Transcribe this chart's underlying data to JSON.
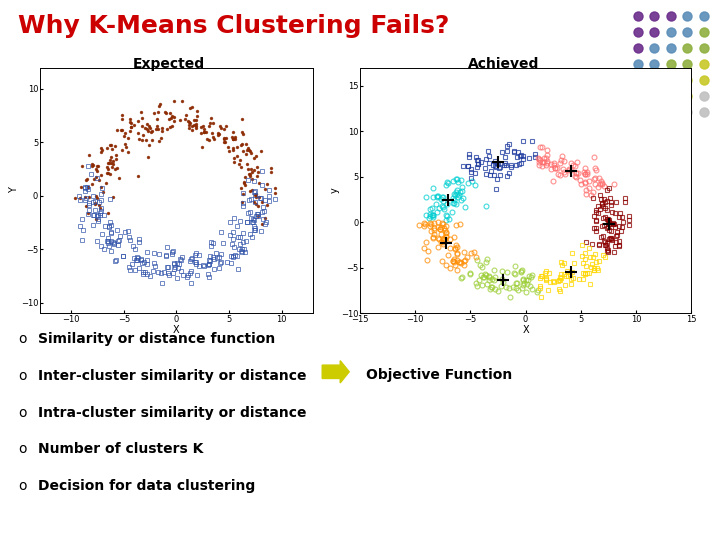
{
  "title": "Why K-Means Clustering Fails?",
  "title_color": "#CC0000",
  "title_fontsize": 18,
  "label_expected": "Expected",
  "label_achieved": "Achieved",
  "bg_color": "#FFFFFF",
  "sidebar_color": "#8B1010",
  "bullet_items": [
    "Similarity or distance function",
    "Inter-cluster similarity or distance",
    "Intra-cluster similarity or distance",
    "Number of clusters K",
    "Decision for data clustering"
  ],
  "objective_label": "Objective Function",
  "arrow_color": "#CCCC00",
  "bullet_fontsize": 10,
  "objective_fontsize": 10,
  "dot_grid": [
    [
      "#6B2D8B",
      "#6B2D8B",
      "#6B2D8B",
      "#5B8DB8",
      "#5B8DB8"
    ],
    [
      "#6B2D8B",
      "#6B2D8B",
      "#5B8DB8",
      "#5B8DB8",
      "#8FB040"
    ],
    [
      "#6B2D8B",
      "#5B8DB8",
      "#5B8DB8",
      "#8FB040",
      "#8FB040"
    ],
    [
      "#5B8DB8",
      "#5B8DB8",
      "#8FB040",
      "#8FB040",
      "#C8C828"
    ],
    [
      "#5B8DB8",
      "#8FB040",
      "#8FB040",
      "#C8C828",
      "#C8C828"
    ],
    [
      "#8FB040",
      "#8FB040",
      "#C8C828",
      "#C8C828",
      "#C0C0C0"
    ],
    [
      "#8FB040",
      "#C8C828",
      "#C8C828",
      "#C0C0C0",
      "#C0C0C0"
    ]
  ],
  "moon_color1": "#8B2800",
  "moon_color2": "#3355AA",
  "cluster_colors": [
    "#00CED1",
    "#1E3A9E",
    "#FF6B6B",
    "#8B0000",
    "#9ACD32",
    "#FFD700",
    "#FF8C00"
  ]
}
